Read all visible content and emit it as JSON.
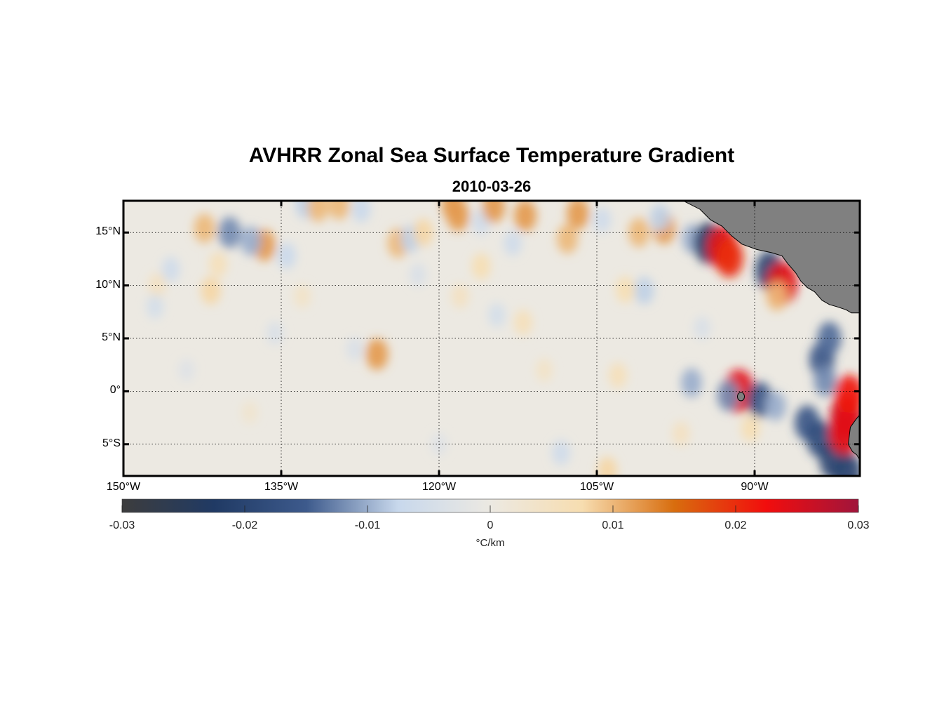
{
  "title": "AVHRR Zonal Sea Surface Temperature Gradient",
  "subtitle": "2010-03-26",
  "map": {
    "lon_range": [
      -150,
      -80
    ],
    "lat_range": [
      -8,
      18
    ],
    "lat_ticks": [
      {
        "value": 15,
        "label": "15°N"
      },
      {
        "value": 10,
        "label": "10°N"
      },
      {
        "value": 5,
        "label": "5°N"
      },
      {
        "value": 0,
        "label": "0°"
      },
      {
        "value": -5,
        "label": "5°S"
      }
    ],
    "lon_ticks": [
      {
        "value": -150,
        "label": "150°W"
      },
      {
        "value": -135,
        "label": "135°W"
      },
      {
        "value": -120,
        "label": "120°W"
      },
      {
        "value": -105,
        "label": "105°W"
      },
      {
        "value": -90,
        "label": "90°W"
      }
    ],
    "grid": "dotted",
    "land_color": "#808080",
    "features": [
      {
        "lon": -136.6,
        "lat": 13.8,
        "value": 0.012
      },
      {
        "lon": -142.3,
        "lat": 15.4,
        "value": 0.01
      },
      {
        "lon": -139.9,
        "lat": 15.0,
        "value": -0.012
      },
      {
        "lon": -137.9,
        "lat": 14.2,
        "value": -0.01
      },
      {
        "lon": -141.0,
        "lat": 12.0,
        "value": 0.006
      },
      {
        "lon": -141.7,
        "lat": 9.5,
        "value": 0.008
      },
      {
        "lon": -146.8,
        "lat": 10.0,
        "value": 0.005
      },
      {
        "lon": -145.5,
        "lat": 11.5,
        "value": -0.006
      },
      {
        "lon": -134.5,
        "lat": 12.8,
        "value": -0.007
      },
      {
        "lon": -132.7,
        "lat": 17.6,
        "value": -0.008
      },
      {
        "lon": -131.5,
        "lat": 17.4,
        "value": 0.01
      },
      {
        "lon": -129.5,
        "lat": 17.6,
        "value": 0.01
      },
      {
        "lon": -127.4,
        "lat": 17.2,
        "value": -0.007
      },
      {
        "lon": -123.9,
        "lat": 14.0,
        "value": 0.01
      },
      {
        "lon": -122.7,
        "lat": 14.4,
        "value": -0.008
      },
      {
        "lon": -121.5,
        "lat": 15.0,
        "value": 0.008
      },
      {
        "lon": -118.2,
        "lat": 16.6,
        "value": 0.012
      },
      {
        "lon": -118.7,
        "lat": 17.6,
        "value": 0.012
      },
      {
        "lon": -116.0,
        "lat": 16.0,
        "value": -0.006
      },
      {
        "lon": -114.8,
        "lat": 17.4,
        "value": 0.012
      },
      {
        "lon": -116.0,
        "lat": 11.8,
        "value": 0.007
      },
      {
        "lon": -113.0,
        "lat": 14.0,
        "value": -0.006
      },
      {
        "lon": -111.8,
        "lat": 16.6,
        "value": 0.012
      },
      {
        "lon": -106.8,
        "lat": 16.8,
        "value": 0.012
      },
      {
        "lon": -107.8,
        "lat": 14.4,
        "value": 0.01
      },
      {
        "lon": -104.5,
        "lat": 16.2,
        "value": -0.006
      },
      {
        "lon": -125.9,
        "lat": 3.5,
        "value": 0.012
      },
      {
        "lon": -112.0,
        "lat": 6.5,
        "value": 0.006
      },
      {
        "lon": -101.0,
        "lat": 15.0,
        "value": 0.01
      },
      {
        "lon": -98.6,
        "lat": 15.4,
        "value": 0.012
      },
      {
        "lon": -99.0,
        "lat": 16.4,
        "value": -0.008
      },
      {
        "lon": -95.9,
        "lat": 14.4,
        "value": -0.01
      },
      {
        "lon": -94.4,
        "lat": 14.0,
        "value": -0.022
      },
      {
        "lon": -93.1,
        "lat": 13.6,
        "value": 0.024
      },
      {
        "lon": -92.4,
        "lat": 12.6,
        "value": 0.02
      },
      {
        "lon": -88.6,
        "lat": 11.4,
        "value": -0.02
      },
      {
        "lon": -87.4,
        "lat": 10.2,
        "value": 0.024
      },
      {
        "lon": -87.9,
        "lat": 9.0,
        "value": 0.01
      },
      {
        "lon": -100.5,
        "lat": 9.5,
        "value": -0.008
      },
      {
        "lon": -102.3,
        "lat": 9.6,
        "value": 0.007
      },
      {
        "lon": -96.0,
        "lat": 0.8,
        "value": -0.01
      },
      {
        "lon": -91.5,
        "lat": 0.0,
        "value": 0.024
      },
      {
        "lon": -92.5,
        "lat": -0.4,
        "value": -0.012
      },
      {
        "lon": -89.5,
        "lat": -0.8,
        "value": -0.016
      },
      {
        "lon": -88.0,
        "lat": -1.4,
        "value": -0.01
      },
      {
        "lon": -90.4,
        "lat": -3.5,
        "value": 0.007
      },
      {
        "lon": -83.6,
        "lat": 3.0,
        "value": -0.016
      },
      {
        "lon": -82.9,
        "lat": 5.0,
        "value": -0.014
      },
      {
        "lon": -83.3,
        "lat": 1.0,
        "value": -0.012
      },
      {
        "lon": -85.0,
        "lat": -3.0,
        "value": -0.016
      },
      {
        "lon": -83.8,
        "lat": -4.5,
        "value": -0.018
      },
      {
        "lon": -82.5,
        "lat": -6.5,
        "value": -0.02
      },
      {
        "lon": -81.2,
        "lat": -7.6,
        "value": -0.02
      },
      {
        "lon": -81.3,
        "lat": -2.4,
        "value": 0.026
      },
      {
        "lon": -81.0,
        "lat": -0.4,
        "value": 0.022
      },
      {
        "lon": -81.5,
        "lat": -4.0,
        "value": 0.024
      },
      {
        "lon": -103.0,
        "lat": 1.5,
        "value": 0.006
      },
      {
        "lon": -104.0,
        "lat": -7.5,
        "value": 0.008
      },
      {
        "lon": -108.4,
        "lat": -5.8,
        "value": -0.006
      },
      {
        "lon": -120.0,
        "lat": -5.0,
        "value": -0.003
      },
      {
        "lon": -147.0,
        "lat": 8.0,
        "value": -0.005
      },
      {
        "lon": -133.0,
        "lat": 9.0,
        "value": 0.004
      },
      {
        "lon": -128.0,
        "lat": 4.0,
        "value": -0.004
      },
      {
        "lon": -135.6,
        "lat": 5.5,
        "value": -0.004
      },
      {
        "lon": -114.5,
        "lat": 7.2,
        "value": -0.005
      },
      {
        "lon": -110.0,
        "lat": 2.0,
        "value": 0.004
      },
      {
        "lon": -97.0,
        "lat": -4.0,
        "value": 0.005
      },
      {
        "lon": -95.0,
        "lat": 6.0,
        "value": -0.004
      },
      {
        "lon": -138.0,
        "lat": -2.0,
        "value": 0.003
      },
      {
        "lon": -144.0,
        "lat": 2.0,
        "value": -0.003
      },
      {
        "lon": -118.0,
        "lat": 9.0,
        "value": 0.005
      },
      {
        "lon": -122.0,
        "lat": 11.0,
        "value": -0.004
      }
    ]
  },
  "colorbar": {
    "min": -0.03,
    "max": 0.03,
    "ticks": [
      "-0.03",
      "-0.02",
      "-0.01",
      "0",
      "0.01",
      "0.02",
      "0.03"
    ],
    "label": "°C/km",
    "stops": [
      "#3d3d3d",
      "#203a64",
      "#3d5a8c",
      "#c8d8ec",
      "#ece9e2",
      "#f7ddb0",
      "#d86d0e",
      "#f20d0d",
      "#a0153c"
    ]
  }
}
